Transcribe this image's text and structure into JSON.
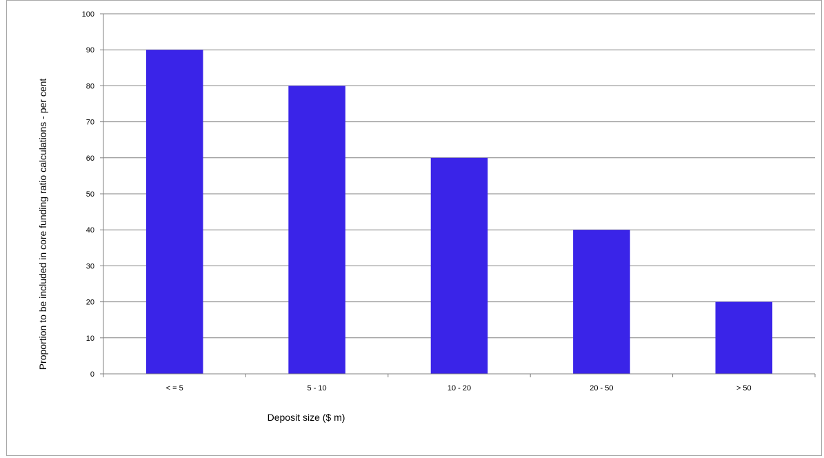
{
  "chart_data": {
    "type": "bar",
    "categories": [
      "< = 5",
      "5 - 10",
      "10 - 20",
      "20 - 50",
      "> 50"
    ],
    "values": [
      90,
      80,
      60,
      40,
      20
    ],
    "title": "",
    "xlabel": "Deposit size ($ m)",
    "ylabel": "Proportion to be included in core funding  ratio calculations - per cent",
    "ylim": [
      0,
      100
    ],
    "yticks": [
      0,
      10,
      20,
      30,
      40,
      50,
      60,
      70,
      80,
      90,
      100
    ],
    "grid": true,
    "legend": "none",
    "bar_color": "#3a24e8"
  }
}
